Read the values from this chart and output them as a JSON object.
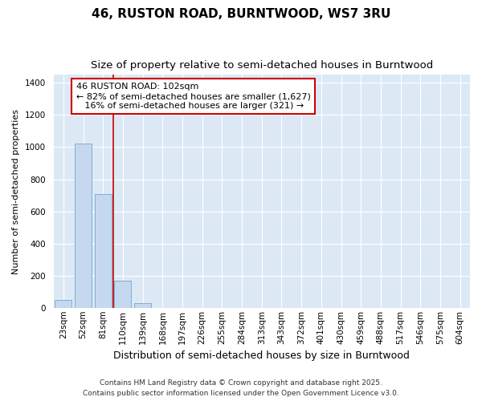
{
  "title": "46, RUSTON ROAD, BURNTWOOD, WS7 3RU",
  "subtitle": "Size of property relative to semi-detached houses in Burntwood",
  "xlabel": "Distribution of semi-detached houses by size in Burntwood",
  "ylabel": "Number of semi-detached properties",
  "categories": [
    "23sqm",
    "52sqm",
    "81sqm",
    "110sqm",
    "139sqm",
    "168sqm",
    "197sqm",
    "226sqm",
    "255sqm",
    "284sqm",
    "313sqm",
    "343sqm",
    "372sqm",
    "401sqm",
    "430sqm",
    "459sqm",
    "488sqm",
    "517sqm",
    "546sqm",
    "575sqm",
    "604sqm"
  ],
  "values": [
    50,
    1020,
    710,
    170,
    30,
    0,
    0,
    0,
    0,
    0,
    0,
    0,
    0,
    0,
    0,
    0,
    0,
    0,
    0,
    0,
    0
  ],
  "bar_color": "#c5d8ef",
  "bar_edge_color": "#7bafd4",
  "vline_color": "#cc0000",
  "vline_pos": 2.5,
  "annotation_text": "46 RUSTON ROAD: 102sqm\n← 82% of semi-detached houses are smaller (1,627)\n   16% of semi-detached houses are larger (321) →",
  "annotation_box_facecolor": "#ffffff",
  "annotation_box_edgecolor": "#cc0000",
  "ylim": [
    0,
    1450
  ],
  "yticks": [
    0,
    200,
    400,
    600,
    800,
    1000,
    1200,
    1400
  ],
  "plot_bg_color": "#dce9f5",
  "fig_bg_color": "#ffffff",
  "footer_text": "Contains HM Land Registry data © Crown copyright and database right 2025.\nContains public sector information licensed under the Open Government Licence v3.0.",
  "title_fontsize": 11,
  "subtitle_fontsize": 9.5,
  "ylabel_fontsize": 8,
  "xlabel_fontsize": 9,
  "tick_fontsize": 7.5,
  "annotation_fontsize": 8,
  "footer_fontsize": 6.5
}
